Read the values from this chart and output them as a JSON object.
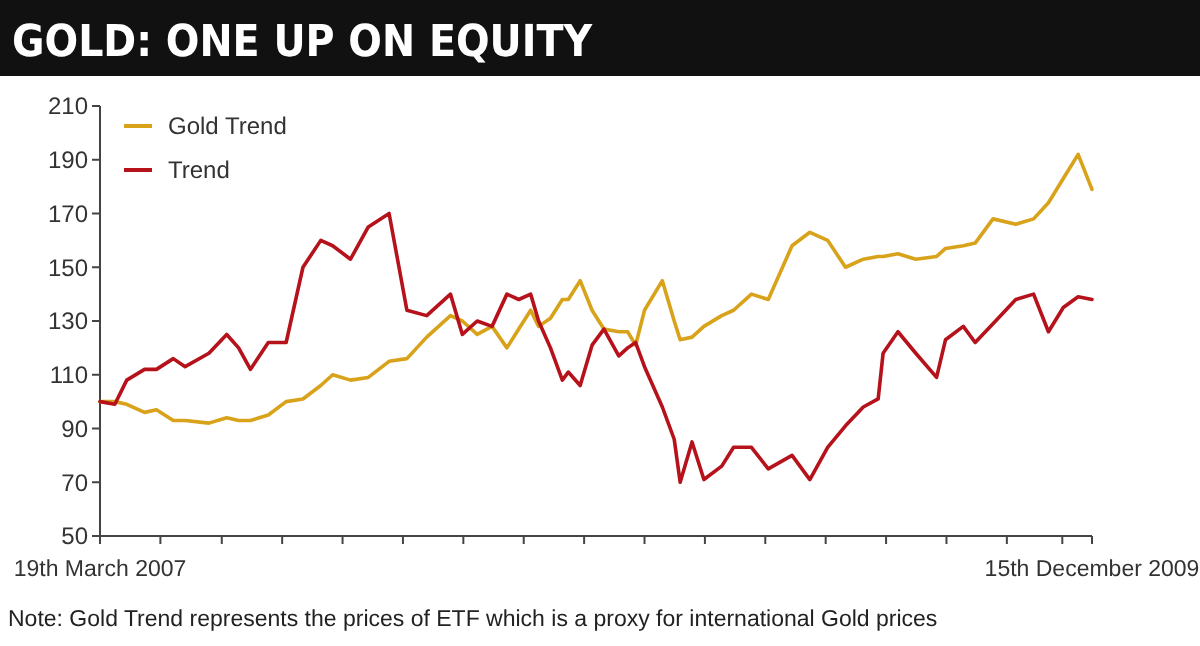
{
  "chart_data": {
    "type": "line",
    "title": "GOLD: ONE UP ON EQUITY",
    "annotations": [
      "Note: Gold Trend represents the prices of ETF which is a proxy for international Gold prices"
    ],
    "x": [
      "2007-03-19",
      "2007-04-03",
      "2007-04-15",
      "2007-05-03",
      "2007-05-15",
      "2007-06-01",
      "2007-06-13",
      "2007-07-07",
      "2007-07-25",
      "2007-08-06",
      "2007-08-18",
      "2007-09-05",
      "2007-09-23",
      "2007-10-10",
      "2007-10-28",
      "2007-11-09",
      "2007-11-27",
      "2007-12-15",
      "2008-01-05",
      "2008-01-23",
      "2008-02-12",
      "2008-03-07",
      "2008-03-19",
      "2008-04-03",
      "2008-04-18",
      "2008-05-03",
      "2008-05-15",
      "2008-05-27",
      "2008-06-04",
      "2008-06-16",
      "2008-06-28",
      "2008-07-04",
      "2008-07-16",
      "2008-07-28",
      "2008-08-09",
      "2008-08-24",
      "2008-09-02",
      "2008-09-10",
      "2008-09-19",
      "2008-10-07",
      "2008-10-19",
      "2008-10-25",
      "2008-11-06",
      "2008-11-18",
      "2008-12-06",
      "2008-12-18",
      "2009-01-05",
      "2009-01-22",
      "2009-02-15",
      "2009-03-05",
      "2009-03-23",
      "2009-04-10",
      "2009-04-28",
      "2009-05-13",
      "2009-05-18",
      "2009-06-02",
      "2009-06-20",
      "2009-07-11",
      "2009-07-20",
      "2009-08-07",
      "2009-08-19",
      "2009-09-06",
      "2009-09-29",
      "2009-10-17",
      "2009-11-01",
      "2009-11-16",
      "2009-12-01",
      "2009-12-15"
    ],
    "series": [
      {
        "name": "Gold Trend",
        "color": "#d9a21b",
        "values": [
          100,
          100,
          99,
          96,
          97,
          93,
          93,
          92,
          94,
          93,
          93,
          95,
          100,
          101,
          106,
          110,
          108,
          109,
          115,
          116,
          124,
          132,
          130,
          125,
          128,
          120,
          127,
          134,
          128,
          131,
          138,
          138,
          145,
          134,
          127,
          126,
          126,
          121,
          134,
          145,
          130,
          123,
          124,
          128,
          132,
          134,
          140,
          138,
          158,
          163,
          160,
          150,
          153,
          154,
          154,
          155,
          153,
          154,
          157,
          158,
          159,
          168,
          166,
          168,
          174,
          183,
          192,
          179
        ]
      },
      {
        "name": "Trend",
        "color": "#b5121b",
        "values": [
          100,
          99,
          108,
          112,
          112,
          116,
          113,
          118,
          125,
          120,
          112,
          122,
          122,
          150,
          160,
          158,
          153,
          165,
          170,
          134,
          132,
          140,
          125,
          130,
          128,
          140,
          138,
          140,
          130,
          120,
          108,
          111,
          106,
          121,
          127,
          117,
          120,
          122,
          113,
          98,
          86,
          70,
          85,
          71,
          76,
          83,
          83,
          75,
          80,
          71,
          83,
          91,
          98,
          101,
          118,
          126,
          118,
          109,
          123,
          128,
          122,
          129,
          138,
          140,
          126,
          135,
          139,
          138
        ]
      }
    ],
    "xlim": [
      "2007-03-19",
      "2009-12-15"
    ],
    "xticks": [
      {
        "value": "2007-03-19",
        "label": "19th March 2007"
      },
      {
        "value": "2007-05-19",
        "label": null
      },
      {
        "value": "2007-07-20",
        "label": null
      },
      {
        "value": "2007-09-19",
        "label": null
      },
      {
        "value": "2007-11-19",
        "label": null
      },
      {
        "value": "2008-01-19",
        "label": null
      },
      {
        "value": "2008-03-20",
        "label": null
      },
      {
        "value": "2008-05-20",
        "label": null
      },
      {
        "value": "2008-07-20",
        "label": null
      },
      {
        "value": "2008-09-19",
        "label": null
      },
      {
        "value": "2008-11-19",
        "label": null
      },
      {
        "value": "2009-01-19",
        "label": null
      },
      {
        "value": "2009-03-21",
        "label": null
      },
      {
        "value": "2009-05-21",
        "label": null
      },
      {
        "value": "2009-07-21",
        "label": null
      },
      {
        "value": "2009-09-20",
        "label": null
      },
      {
        "value": "2009-11-15",
        "label": null
      },
      {
        "value": "2009-12-15",
        "label": "15th December 2009"
      }
    ],
    "ylim": [
      50,
      210
    ],
    "yticks": [
      50,
      70,
      90,
      110,
      130,
      150,
      170,
      190,
      210
    ],
    "legend": "top left",
    "line_style": "solid"
  }
}
